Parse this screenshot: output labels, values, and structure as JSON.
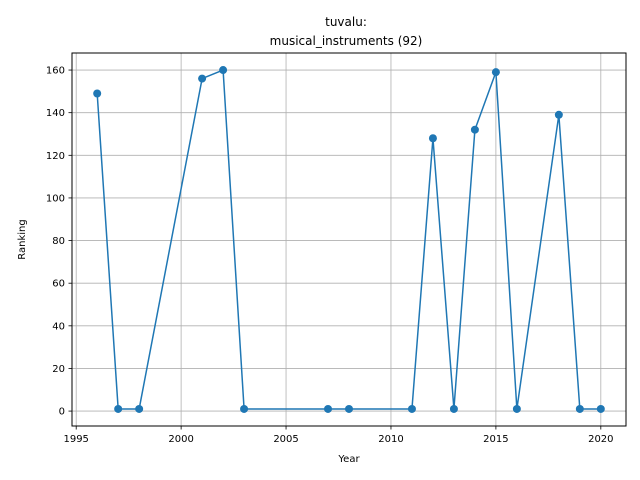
{
  "chart_data": {
    "type": "line",
    "title_line1": "tuvalu:",
    "title_line2": "musical_instruments (92)",
    "xlabel": "Year",
    "ylabel": "Ranking",
    "xlim": [
      1994.8,
      2021.2
    ],
    "ylim": [
      -7,
      168
    ],
    "xticks": [
      1995,
      2000,
      2005,
      2010,
      2015,
      2020
    ],
    "yticks": [
      0,
      20,
      40,
      60,
      80,
      100,
      120,
      140,
      160
    ],
    "grid": true,
    "color": "#1f77b4",
    "series": [
      {
        "x": [
          1996,
          1997,
          1998,
          2001,
          2002,
          2003,
          2007,
          2008,
          2011,
          2012,
          2013,
          2014,
          2015,
          2016,
          2018,
          2019,
          2020
        ],
        "y": [
          149,
          1,
          1,
          156,
          160,
          1,
          1,
          1,
          1,
          128,
          1,
          132,
          159,
          1,
          139,
          1,
          1
        ]
      }
    ]
  }
}
